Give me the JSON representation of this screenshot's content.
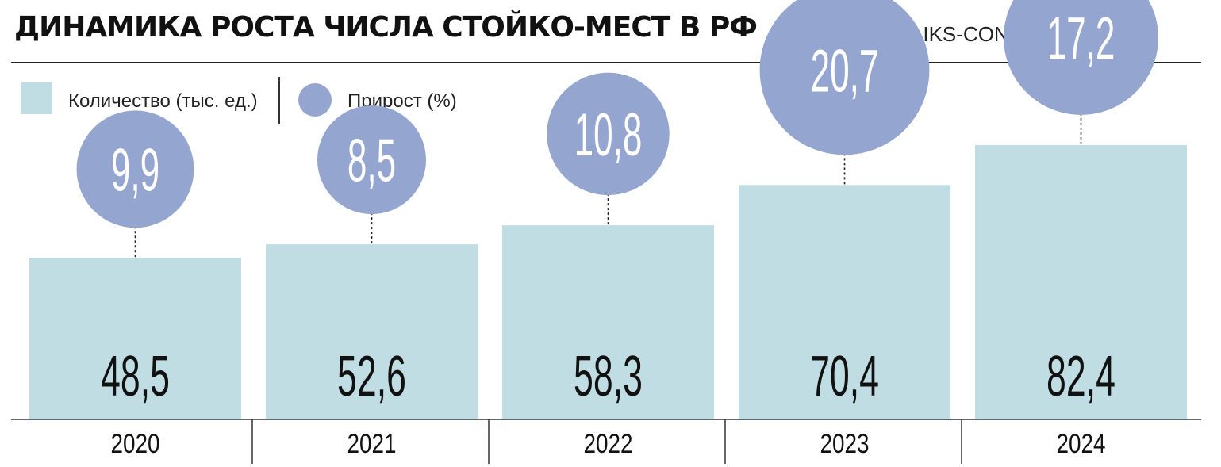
{
  "header": {
    "title": "ДИНАМИКА РОСТА ЧИСЛА СТОЙКО-МЕСТ В РФ",
    "source": "ИСТОЧНИК: IKS-CONSULTING."
  },
  "legend": {
    "count_label": "Количество (тыс. ед.)",
    "growth_label": "Прирост (%)"
  },
  "colors": {
    "bar": "#c0dde4",
    "circle": "#94a5cf",
    "text_dark": "#111111",
    "text_light": "#ffffff"
  },
  "chart_data": {
    "type": "bar",
    "categories": [
      "2020",
      "2021",
      "2022",
      "2023",
      "2024"
    ],
    "series": [
      {
        "name": "Количество (тыс. ед.)",
        "values": [
          48.5,
          52.6,
          58.3,
          70.4,
          82.4
        ],
        "labels": [
          "48,5",
          "52,6",
          "58,3",
          "70,4",
          "82,4"
        ]
      },
      {
        "name": "Прирост (%)",
        "values": [
          9.9,
          8.5,
          10.8,
          20.7,
          17.2
        ],
        "labels": [
          "9,9",
          "8,5",
          "10,8",
          "20,7",
          "17,2"
        ]
      }
    ],
    "title": "ДИНАМИКА РОСТА ЧИСЛА СТОЙКО-МЕСТ В РФ",
    "legend": "top-left"
  }
}
